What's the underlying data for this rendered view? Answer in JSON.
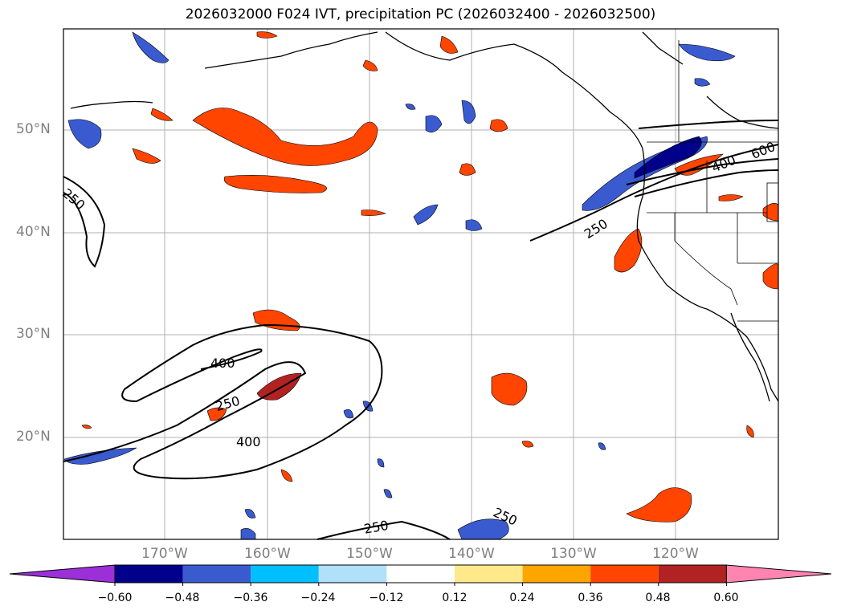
{
  "title": "2026032000 F024 IVT, precipitation PC (2026032400 - 2026032500)",
  "latitude_labels": [
    "50°N",
    "40°N",
    "30°N",
    "20°N"
  ],
  "longitude_labels": [
    "170°W",
    "160°W",
    "150°W",
    "140°W",
    "130°W",
    "120°W"
  ],
  "contour_labels": [
    "250",
    "250",
    "400",
    "400",
    "250",
    "250",
    "400",
    "600",
    "250"
  ],
  "colorbar": {
    "ticks": [
      "−0.60",
      "−0.48",
      "−0.36",
      "−0.24",
      "−0.12",
      "0.12",
      "0.24",
      "0.36",
      "0.48",
      "0.60"
    ],
    "colors": [
      "#9b30d9",
      "#00008b",
      "#3a5bd0",
      "#00bfff",
      "#b0e0fa",
      "#ffffff",
      "#ffe98a",
      "#ffa500",
      "#ff4500",
      "#b22222",
      "#ff85b0"
    ]
  }
}
